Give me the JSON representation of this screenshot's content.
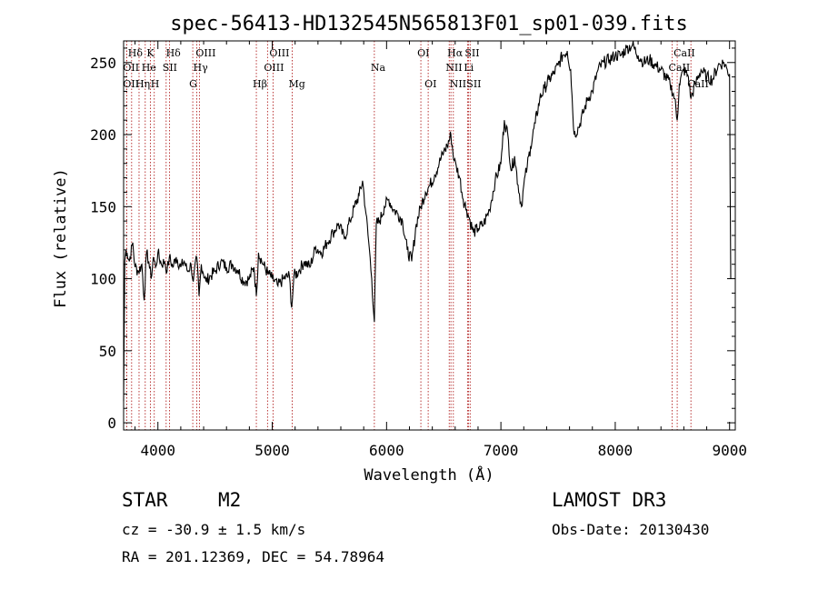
{
  "chart_data": {
    "type": "line",
    "title": "spec-56413-HD132545N565813F01_sp01-039.fits",
    "xlabel": "Wavelength (Å)",
    "ylabel": "Flux (relative)",
    "xlim": [
      3700,
      9050
    ],
    "ylim": [
      -5,
      265
    ],
    "x_ticks": [
      4000,
      5000,
      6000,
      7000,
      8000,
      9000
    ],
    "y_ticks": [
      0,
      50,
      100,
      150,
      200,
      250
    ],
    "grid": false,
    "series": [
      {
        "x": [
          3700,
          3710,
          3720,
          3730,
          3750,
          3780,
          3800,
          3830,
          3860,
          3880,
          3900,
          3920,
          3940,
          3960,
          3980,
          4000,
          4030,
          4060,
          4080,
          4100,
          4130,
          4160,
          4200,
          4230,
          4260,
          4290,
          4310,
          4340,
          4360,
          4380,
          4420,
          4460,
          4500,
          4550,
          4600,
          4650,
          4700,
          4750,
          4800,
          4840,
          4861,
          4880,
          4920,
          4960,
          5000,
          5050,
          5100,
          5150,
          5170,
          5190,
          5230,
          5280,
          5330,
          5380,
          5430,
          5480,
          5530,
          5580,
          5630,
          5680,
          5720,
          5760,
          5790,
          5820,
          5850,
          5870,
          5893,
          5910,
          5940,
          5980,
          6020,
          6060,
          6100,
          6140,
          6180,
          6220,
          6260,
          6300,
          6340,
          6380,
          6420,
          6460,
          6500,
          6530,
          6563,
          6590,
          6610,
          6640,
          6670,
          6700,
          6730,
          6760,
          6800,
          6850,
          6900,
          6950,
          7000,
          7030,
          7060,
          7090,
          7120,
          7150,
          7180,
          7200,
          7230,
          7260,
          7300,
          7340,
          7380,
          7420,
          7460,
          7500,
          7540,
          7580,
          7610,
          7640,
          7680,
          7720,
          7760,
          7800,
          7850,
          7900,
          7950,
          8000,
          8050,
          8100,
          8150,
          8200,
          8250,
          8300,
          8350,
          8400,
          8440,
          8480,
          8520,
          8542,
          8560,
          8600,
          8640,
          8662,
          8700,
          8750,
          8800,
          8850,
          8900,
          8950,
          8980,
          9000,
          9010
        ],
        "y": [
          15,
          112,
          120,
          118,
          112,
          125,
          108,
          105,
          110,
          85,
          118,
          112,
          100,
          115,
          108,
          118,
          110,
          112,
          105,
          115,
          108,
          115,
          108,
          112,
          105,
          110,
          98,
          115,
          88,
          110,
          98,
          102,
          105,
          112,
          108,
          110,
          106,
          98,
          100,
          108,
          88,
          118,
          110,
          104,
          100,
          95,
          100,
          102,
          80,
          102,
          105,
          112,
          108,
          122,
          118,
          125,
          132,
          138,
          128,
          140,
          150,
          158,
          168,
          145,
          120,
          100,
          70,
          138,
          140,
          150,
          155,
          148,
          145,
          140,
          120,
          112,
          138,
          150,
          160,
          165,
          172,
          180,
          188,
          192,
          200,
          182,
          178,
          170,
          155,
          148,
          140,
          132,
          135,
          138,
          148,
          168,
          180,
          210,
          200,
          175,
          185,
          165,
          150,
          165,
          178,
          192,
          208,
          225,
          232,
          238,
          242,
          248,
          255,
          258,
          245,
          200,
          205,
          215,
          225,
          230,
          245,
          250,
          252,
          255,
          255,
          260,
          262,
          255,
          250,
          252,
          248,
          245,
          240,
          235,
          225,
          210,
          235,
          245,
          240,
          225,
          235,
          245,
          240,
          238,
          248,
          250,
          245,
          242,
          100
        ]
      }
    ],
    "line_markers": [
      {
        "label": "Hδ",
        "x": 3770,
        "row": 1
      },
      {
        "label": "OII",
        "x": 3727,
        "row": 2
      },
      {
        "label": "OII",
        "x": 3727,
        "row": 3
      },
      {
        "label": "K",
        "x": 3934,
        "row": 1
      },
      {
        "label": "He",
        "x": 3889,
        "row": 2
      },
      {
        "label": "Hη",
        "x": 3835,
        "row": 3
      },
      {
        "label": "Hδ",
        "x": 4102,
        "row": 1
      },
      {
        "label": "SII",
        "x": 4072,
        "row": 2
      },
      {
        "label": "H",
        "x": 3968,
        "row": 3
      },
      {
        "label": "OIII",
        "x": 4363,
        "row": 1
      },
      {
        "label": "Hγ",
        "x": 4340,
        "row": 2
      },
      {
        "label": "G",
        "x": 4305,
        "row": 3
      },
      {
        "label": "OIII",
        "x": 5007,
        "row": 1
      },
      {
        "label": "OIII",
        "x": 4959,
        "row": 2
      },
      {
        "label": "Hβ",
        "x": 4861,
        "row": 3
      },
      {
        "label": "Mg",
        "x": 5175,
        "row": 3
      },
      {
        "label": "Na",
        "x": 5893,
        "row": 2
      },
      {
        "label": "OI",
        "x": 6300,
        "row": 1
      },
      {
        "label": "OI",
        "x": 6364,
        "row": 3
      },
      {
        "label": "Hα",
        "x": 6563,
        "row": 1
      },
      {
        "label": "SII",
        "x": 6716,
        "row": 1
      },
      {
        "label": "NII",
        "x": 6548,
        "row": 2
      },
      {
        "label": "Li",
        "x": 6708,
        "row": 2
      },
      {
        "label": "NII",
        "x": 6584,
        "row": 3
      },
      {
        "label": "SII",
        "x": 6731,
        "row": 3
      },
      {
        "label": "CaII",
        "x": 8542,
        "row": 1
      },
      {
        "label": "CaII",
        "x": 8498,
        "row": 2
      },
      {
        "label": "CaII",
        "x": 8662,
        "row": 3
      }
    ]
  },
  "info": {
    "object_class": "STAR",
    "subclass": "M2",
    "cz": "cz = -30.9 ± 1.5 km/s",
    "coords": "RA = 201.12369, DEC =  54.78964",
    "survey": "LAMOST DR3",
    "obs_date": "Obs-Date: 20130430"
  }
}
